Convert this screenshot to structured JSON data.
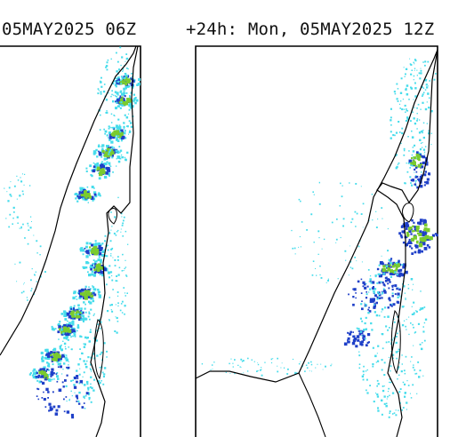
{
  "panels": [
    {
      "title": "05MAY2025 06Z",
      "colors": [
        "#46dceb",
        "#1e3fc8",
        "#7acb2e",
        "#3bb35a"
      ]
    },
    {
      "title": "+24h: Mon, 05MAY2025 12Z",
      "colors": [
        "#46dceb",
        "#1e3fc8",
        "#7acb2e",
        "#3bb35a"
      ]
    }
  ],
  "palette": {
    "cyan": "#46dceb",
    "blue": "#1e3fc8",
    "green": "#7acb2e",
    "darkgreen": "#3bb35a",
    "outline": "#000000"
  }
}
